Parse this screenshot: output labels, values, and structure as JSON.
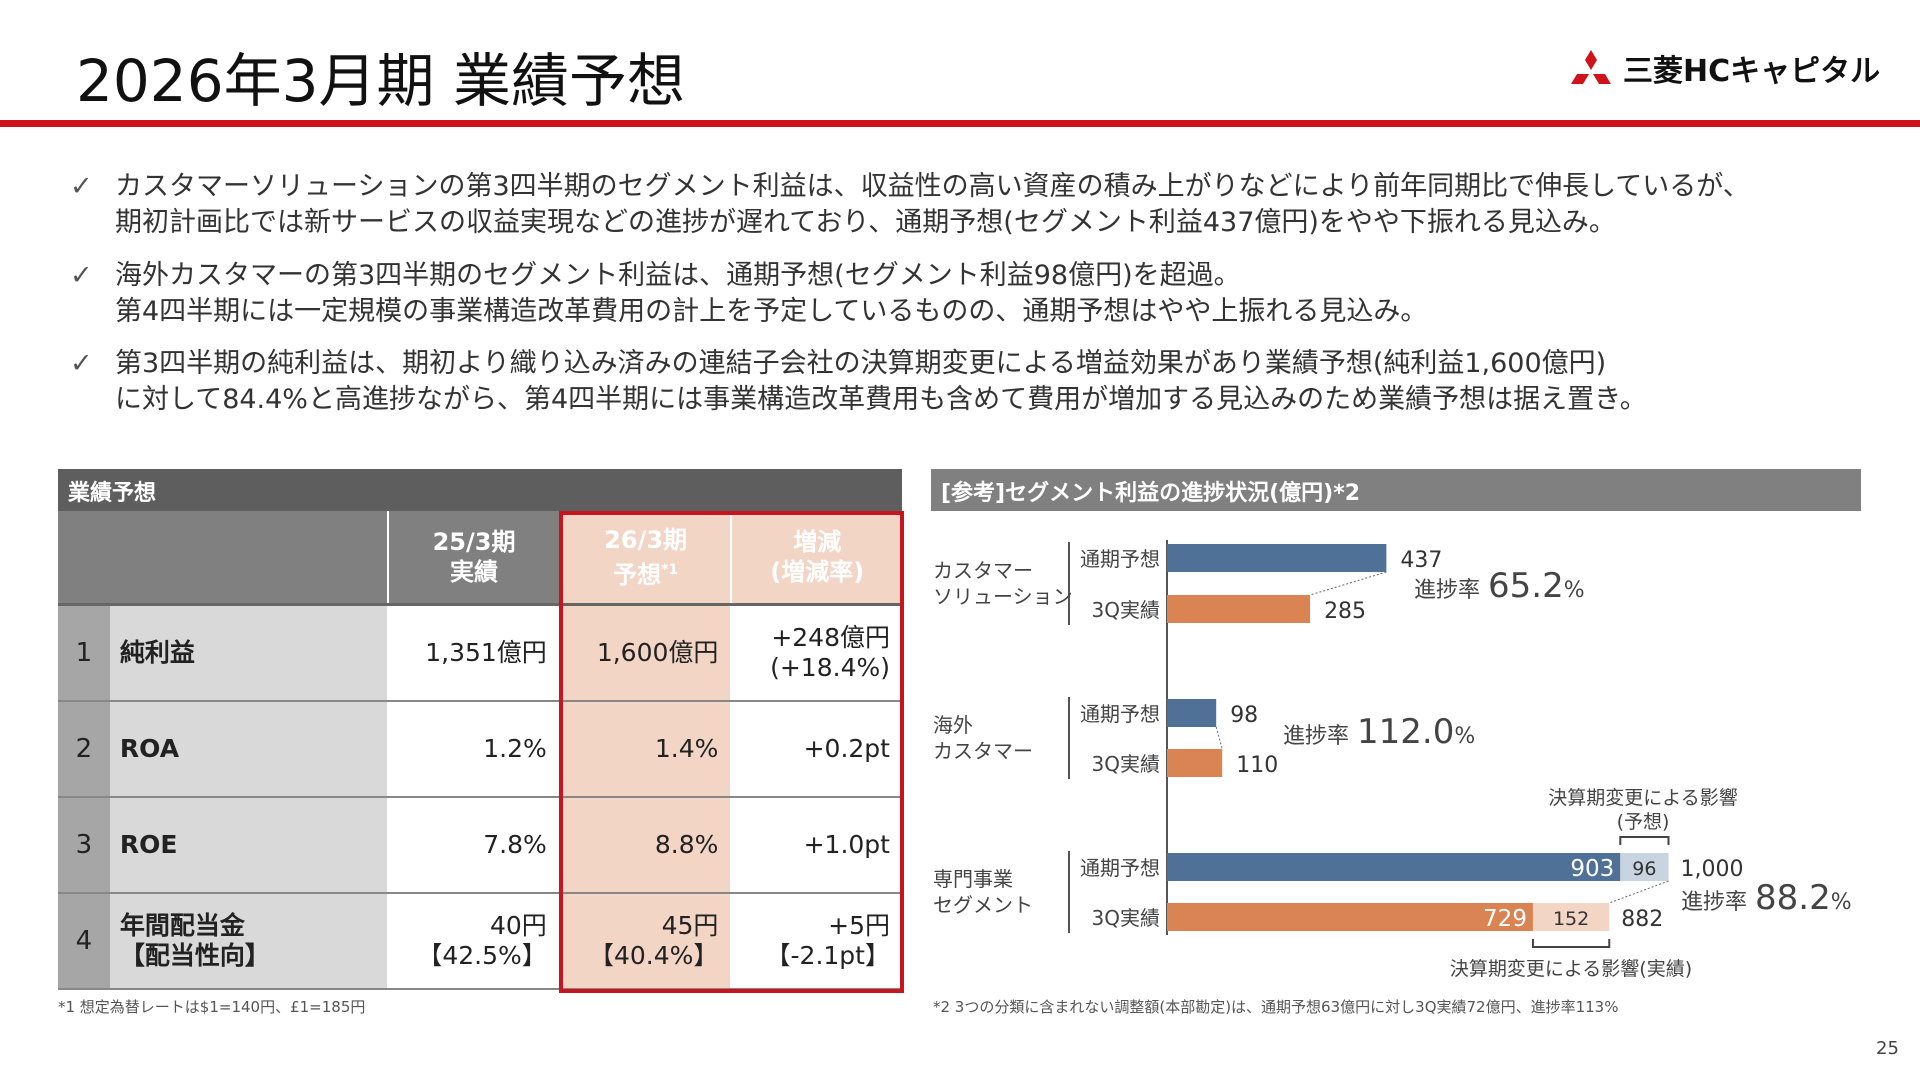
{
  "header": {
    "title": "2026年3月期 業績予想",
    "logo_text": "三菱HCキャピタル"
  },
  "bullets": [
    {
      "icon": "check-icon",
      "mark": "✓",
      "lines": [
        "カスタマーソリューションの第3四半期のセグメント利益は、収益性の高い資産の積み上がりなどにより前年同期比で伸長しているが、",
        "期初計画比では新サービスの収益実現などの進捗が遅れており、通期予想(セグメント利益437億円)をやや下振れる見込み。"
      ]
    },
    {
      "icon": "check-icon",
      "mark": "✓",
      "lines": [
        "海外カスタマーの第3四半期のセグメント利益は、通期予想(セグメント利益98億円)を超過。",
        "第4四半期には一定規模の事業構造改革費用の計上を予定しているものの、通期予想はやや上振れる見込み。"
      ]
    },
    {
      "icon": "check-icon",
      "mark": "✓",
      "lines": [
        "第3四半期の純利益は、期初より織り込み済みの連結子会社の決算期変更による増益効果があり業績予想(純利益1,600億円)",
        "に対して84.4%と高進捗ながら、第4四半期には事業構造改革費用も含めて費用が増加する見込みのため業績予想は据え置き。"
      ]
    }
  ],
  "table": {
    "title": "業績予想",
    "columns": [
      {
        "l1": "25/3期",
        "l2": "実績",
        "sup": ""
      },
      {
        "l1": "26/3期",
        "l2": "予想",
        "sup": "*1"
      },
      {
        "l1": "増減",
        "l2": "(増減率)",
        "sup": ""
      }
    ],
    "rows": [
      {
        "no": "1",
        "label": [
          "純利益",
          ""
        ],
        "v": [
          [
            "1,351億円",
            ""
          ],
          [
            "1,600億円",
            ""
          ],
          [
            "+248億円",
            "(+18.4%)"
          ]
        ]
      },
      {
        "no": "2",
        "label": [
          "ROA",
          ""
        ],
        "v": [
          [
            "1.2%",
            ""
          ],
          [
            "1.4%",
            ""
          ],
          [
            "+0.2pt",
            ""
          ]
        ]
      },
      {
        "no": "3",
        "label": [
          "ROE",
          ""
        ],
        "v": [
          [
            "7.8%",
            ""
          ],
          [
            "8.8%",
            ""
          ],
          [
            "+1.0pt",
            ""
          ]
        ]
      },
      {
        "no": "4",
        "label": [
          "年間配当金",
          "【配当性向】"
        ],
        "v": [
          [
            "40円",
            "【42.5%】"
          ],
          [
            "45円",
            "【40.4%】"
          ],
          [
            "+5円",
            "【-2.1pt】"
          ]
        ]
      }
    ],
    "footnote": "*1  想定為替レートは$1=140円、£1=185円"
  },
  "chart_data": {
    "type": "bar",
    "title": "[参考]セグメント利益の進捗状況(億円)*2",
    "bar_labels": [
      "通期予想",
      "3Q実績"
    ],
    "groups": [
      {
        "name": [
          "カスタマー",
          "ソリューション"
        ],
        "forecast": 437,
        "forecast_label": "437",
        "actual": 285,
        "actual_label": "285",
        "progress_label": "進捗率",
        "progress": "65.2",
        "pct": "%"
      },
      {
        "name": [
          "海外",
          "カスタマー"
        ],
        "forecast": 98,
        "forecast_label": "98",
        "actual": 110,
        "actual_label": "110",
        "progress_label": "進捗率",
        "progress": "112.0",
        "pct": "%"
      },
      {
        "name": [
          "専門事業",
          "セグメント"
        ],
        "forecast": 903,
        "forecast_label": "903",
        "forecast_extra": 96,
        "forecast_extra_label": "96",
        "forecast_total_label": "1,000",
        "actual": 729,
        "actual_label": "729",
        "actual_extra": 152,
        "actual_extra_label": "152",
        "actual_total_label": "882",
        "progress_label": "進捗率",
        "progress": "88.2",
        "pct": "%"
      }
    ],
    "annotation_forecast": [
      "決算期変更による影響",
      "(予想)"
    ],
    "annotation_actual": "決算期変更による影響(実績)",
    "colors": {
      "forecast": "#4f7198",
      "actual": "#d98452",
      "forecast_extra": "#c8d4e0",
      "actual_extra": "#f2d5c4"
    },
    "footnote": "*2  3つの分類に含まれない調整額(本部勘定)は、通期予想63億円に対し3Q実績72億円、進捗率113%"
  },
  "page_number": "25"
}
